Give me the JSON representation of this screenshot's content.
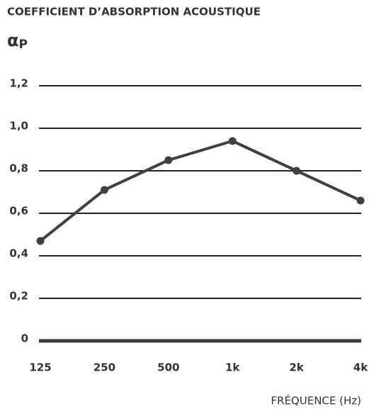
{
  "chart_data": {
    "type": "line",
    "title": "COEFFICIENT D’ABSORPTION ACOUSTIQUE",
    "y_label": "αP",
    "x_label": "FRÉQUENCE (Hz)",
    "categories": [
      "125",
      "250",
      "500",
      "1k",
      "2k",
      "4k"
    ],
    "values": [
      0.47,
      0.71,
      0.85,
      0.94,
      0.8,
      0.66
    ],
    "color": "#404040",
    "ylim": [
      0,
      1.2
    ],
    "yticks": [
      0,
      {
        "value": 0.2,
        "label": "0,2"
      },
      {
        "value": 0.4,
        "label": "0,4"
      },
      {
        "value": 0.6,
        "label": "0,6"
      },
      {
        "value": 0.8,
        "label": "0,8"
      },
      {
        "value": 1.0,
        "label": "1,0"
      },
      {
        "value": 1.2,
        "label": "1,2"
      }
    ],
    "grid": true
  }
}
